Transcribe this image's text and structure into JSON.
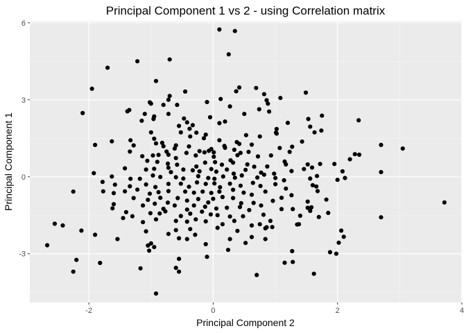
{
  "chart_data": {
    "type": "scatter",
    "title": "Principal Component 1 vs 2 - using Correlation matrix",
    "xlabel": "Principal Component 2",
    "ylabel": "Principal Component 1",
    "xlim": [
      -2.95,
      4.0
    ],
    "ylim": [
      -4.9,
      6.05
    ],
    "xticks": [
      -2,
      0,
      2,
      4
    ],
    "xtick_labels": [
      "-2",
      "0",
      "2",
      "4"
    ],
    "yticks": [
      -3,
      0,
      3,
      6
    ],
    "ytick_labels": [
      "-3",
      "0",
      "3",
      "6"
    ],
    "grid": true,
    "legend": "none",
    "colors": {
      "panel": "#ebebeb",
      "grid_major": "#ffffff",
      "grid_minor": "#f5f5f5",
      "point": "#000000"
    },
    "points": [
      [
        0.1,
        5.74
      ],
      [
        0.35,
        5.68
      ],
      [
        0.25,
        4.77
      ],
      [
        -1.7,
        4.25
      ],
      [
        -0.7,
        4.57
      ],
      [
        -1.22,
        4.5
      ],
      [
        -1.95,
        3.43
      ],
      [
        -2.1,
        2.48
      ],
      [
        -0.92,
        3.73
      ],
      [
        0.42,
        3.48
      ],
      [
        0.69,
        3.46
      ],
      [
        0.37,
        3.33
      ],
      [
        -0.45,
        3.32
      ],
      [
        0.12,
        3.03
      ],
      [
        0.82,
        3.22
      ],
      [
        0.86,
        2.98
      ],
      [
        0.88,
        2.85
      ],
      [
        1.08,
        3.07
      ],
      [
        1.49,
        3.28
      ],
      [
        -0.7,
        3.15
      ],
      [
        -0.72,
        3.0
      ],
      [
        -1.02,
        2.9
      ],
      [
        -1.0,
        2.85
      ],
      [
        -0.8,
        2.8
      ],
      [
        -0.58,
        2.8
      ],
      [
        -1.35,
        2.6
      ],
      [
        -1.38,
        2.55
      ],
      [
        -0.1,
        2.91
      ],
      [
        0.27,
        2.74
      ],
      [
        0.9,
        2.54
      ],
      [
        -1.1,
        2.45
      ],
      [
        -0.72,
        2.45
      ],
      [
        -0.95,
        2.35
      ],
      [
        -0.96,
        2.25
      ],
      [
        -0.47,
        2.27
      ],
      [
        0.5,
        2.45
      ],
      [
        0.74,
        2.63
      ],
      [
        1.75,
        2.38
      ],
      [
        1.53,
        2.25
      ],
      [
        2.34,
        2.2
      ],
      [
        -1.15,
        2.18
      ],
      [
        -0.42,
        2.12
      ],
      [
        -0.33,
        2.01
      ],
      [
        -0.55,
        1.98
      ],
      [
        -0.38,
        1.87
      ],
      [
        -0.05,
        2.32
      ],
      [
        0.1,
        2.09
      ],
      [
        0.19,
        2.15
      ],
      [
        1.2,
        2.1
      ],
      [
        1.56,
        1.95
      ],
      [
        -1.0,
        1.73
      ],
      [
        -0.52,
        1.73
      ],
      [
        -0.37,
        1.57
      ],
      [
        -0.27,
        1.72
      ],
      [
        -0.12,
        1.64
      ],
      [
        0.53,
        1.62
      ],
      [
        0.75,
        1.57
      ],
      [
        1.02,
        1.68
      ],
      [
        1.01,
        1.72
      ],
      [
        1.63,
        1.73
      ],
      [
        1.74,
        1.8
      ],
      [
        1.02,
        1.86
      ],
      [
        -1.9,
        1.24
      ],
      [
        -1.63,
        1.38
      ],
      [
        -1.33,
        1.42
      ],
      [
        -1.28,
        1.22
      ],
      [
        -0.95,
        1.48
      ],
      [
        -0.92,
        1.3
      ],
      [
        -0.82,
        1.32
      ],
      [
        -0.8,
        1.19
      ],
      [
        -0.6,
        1.22
      ],
      [
        -0.15,
        1.5
      ],
      [
        0.1,
        1.42
      ],
      [
        0.18,
        1.2
      ],
      [
        0.38,
        1.35
      ],
      [
        0.42,
        1.28
      ],
      [
        -0.75,
        0.98
      ],
      [
        -0.62,
        1.1
      ],
      [
        -0.39,
        1.18
      ],
      [
        -0.22,
        1.0
      ],
      [
        -0.03,
        1.08
      ],
      [
        0.01,
        0.95
      ],
      [
        0.19,
        1.13
      ],
      [
        0.34,
        1.05
      ],
      [
        0.44,
        0.93
      ],
      [
        0.62,
        1.25
      ],
      [
        1.07,
        1.12
      ],
      [
        1.27,
        1.17
      ],
      [
        1.43,
        1.37
      ],
      [
        2.7,
        1.24
      ],
      [
        3.05,
        1.1
      ],
      [
        -1.34,
        0.98
      ],
      [
        -1.14,
        0.8
      ],
      [
        -0.97,
        0.83
      ],
      [
        -0.88,
        0.85
      ],
      [
        -0.72,
        0.86
      ],
      [
        -0.6,
        0.73
      ],
      [
        -0.43,
        0.93
      ],
      [
        -0.28,
        0.83
      ],
      [
        -0.14,
        0.95
      ],
      [
        -0.07,
        1.01
      ],
      [
        0.01,
        0.78
      ],
      [
        0.28,
        0.64
      ],
      [
        0.39,
        0.84
      ],
      [
        0.57,
        0.97
      ],
      [
        0.72,
        0.79
      ],
      [
        0.93,
        0.83
      ],
      [
        1.23,
        0.97
      ],
      [
        2.28,
        0.88
      ],
      [
        2.35,
        0.86
      ],
      [
        2.2,
        0.68
      ],
      [
        -1.06,
        0.62
      ],
      [
        -0.9,
        0.58
      ],
      [
        -0.73,
        0.51
      ],
      [
        -0.58,
        0.47
      ],
      [
        -0.27,
        0.4
      ],
      [
        -0.13,
        0.55
      ],
      [
        0.03,
        0.57
      ],
      [
        0.14,
        0.47
      ],
      [
        0.32,
        0.55
      ],
      [
        0.55,
        0.48
      ],
      [
        0.66,
        0.39
      ],
      [
        0.87,
        0.4
      ],
      [
        1.15,
        0.59
      ],
      [
        1.17,
        0.48
      ],
      [
        1.52,
        0.48
      ],
      [
        1.59,
        0.36
      ],
      [
        1.72,
        0.5
      ],
      [
        1.95,
        0.5
      ],
      [
        -1.92,
        0.14
      ],
      [
        -1.42,
        0.33
      ],
      [
        -1.08,
        0.28
      ],
      [
        -0.95,
        0.31
      ],
      [
        -0.72,
        0.35
      ],
      [
        -0.68,
        0.18
      ],
      [
        -0.48,
        0.28
      ],
      [
        -0.33,
        0.25
      ],
      [
        -0.22,
        0.21
      ],
      [
        -0.03,
        0.3
      ],
      [
        0.05,
        0.2
      ],
      [
        0.22,
        0.28
      ],
      [
        0.33,
        0.12
      ],
      [
        0.52,
        0.27
      ],
      [
        0.77,
        0.16
      ],
      [
        0.98,
        0.12
      ],
      [
        1.26,
        0.22
      ],
      [
        1.46,
        0.3
      ],
      [
        2.08,
        0.21
      ],
      [
        2.7,
        0.18
      ],
      [
        -1.63,
        0.01
      ],
      [
        -1.33,
        -0.08
      ],
      [
        -1.18,
        -0.08
      ],
      [
        -0.97,
        0.05
      ],
      [
        -0.85,
        -0.01
      ],
      [
        -0.6,
        -0.02
      ],
      [
        -0.48,
        -0.07
      ],
      [
        -0.24,
        0.02
      ],
      [
        -0.08,
        -0.05
      ],
      [
        0.02,
        -0.08
      ],
      [
        0.16,
        0.01
      ],
      [
        0.35,
        -0.04
      ],
      [
        0.46,
        0.05
      ],
      [
        0.71,
        -0.03
      ],
      [
        0.82,
        0.08
      ],
      [
        1.0,
        -0.05
      ],
      [
        1.14,
        -0.14
      ],
      [
        1.56,
        -0.07
      ],
      [
        1.67,
        0.03
      ],
      [
        2.12,
        -0.05
      ],
      [
        -2.25,
        -0.58
      ],
      [
        -1.78,
        -0.2
      ],
      [
        -1.58,
        -0.31
      ],
      [
        -1.34,
        -0.37
      ],
      [
        -1.08,
        -0.3
      ],
      [
        -0.93,
        -0.4
      ],
      [
        -0.72,
        -0.28
      ],
      [
        -0.52,
        -0.27
      ],
      [
        -0.39,
        -0.39
      ],
      [
        -0.26,
        -0.22
      ],
      [
        -0.12,
        -0.28
      ],
      [
        0.02,
        -0.26
      ],
      [
        0.11,
        -0.41
      ],
      [
        0.27,
        -0.27
      ],
      [
        0.44,
        -0.35
      ],
      [
        0.64,
        -0.24
      ],
      [
        0.76,
        -0.36
      ],
      [
        1.0,
        -0.29
      ],
      [
        1.17,
        -0.46
      ],
      [
        1.6,
        -0.33
      ],
      [
        1.66,
        -0.38
      ],
      [
        2.0,
        -0.12
      ],
      [
        -1.77,
        -0.57
      ],
      [
        -1.6,
        -0.64
      ],
      [
        -1.42,
        -0.57
      ],
      [
        -1.22,
        -0.5
      ],
      [
        -1.02,
        -0.66
      ],
      [
        -0.88,
        -0.6
      ],
      [
        -0.72,
        -0.56
      ],
      [
        -0.45,
        -0.58
      ],
      [
        -0.31,
        -0.62
      ],
      [
        -0.17,
        -0.58
      ],
      [
        -0.03,
        -0.63
      ],
      [
        0.1,
        -0.58
      ],
      [
        0.32,
        -0.51
      ],
      [
        0.49,
        -0.62
      ],
      [
        0.62,
        -0.7
      ],
      [
        0.84,
        -0.58
      ],
      [
        1.1,
        -0.82
      ],
      [
        1.68,
        -0.56
      ],
      [
        -1.6,
        -1.07
      ],
      [
        -1.28,
        -0.83
      ],
      [
        -1.05,
        -0.9
      ],
      [
        -0.85,
        -0.82
      ],
      [
        -0.73,
        -1.01
      ],
      [
        -0.57,
        -0.83
      ],
      [
        -0.42,
        -0.93
      ],
      [
        -0.24,
        -0.87
      ],
      [
        -0.08,
        -1.0
      ],
      [
        0.0,
        -0.86
      ],
      [
        0.15,
        -0.79
      ],
      [
        0.32,
        -0.83
      ],
      [
        0.45,
        -1.03
      ],
      [
        0.65,
        -1.02
      ],
      [
        0.96,
        -0.94
      ],
      [
        1.26,
        -0.72
      ],
      [
        1.52,
        -0.97
      ],
      [
        1.82,
        -0.89
      ],
      [
        -1.62,
        -1.23
      ],
      [
        -1.4,
        -1.38
      ],
      [
        -1.13,
        -1.12
      ],
      [
        -0.94,
        -1.05
      ],
      [
        -0.8,
        -1.25
      ],
      [
        -0.62,
        -1.12
      ],
      [
        -0.42,
        -1.28
      ],
      [
        -0.31,
        -1.12
      ],
      [
        -0.13,
        -1.17
      ],
      [
        0.05,
        -1.24
      ],
      [
        0.22,
        -1.21
      ],
      [
        0.43,
        -1.18
      ],
      [
        0.58,
        -1.3
      ],
      [
        0.77,
        -1.12
      ],
      [
        1.1,
        -1.26
      ],
      [
        1.28,
        -1.26
      ],
      [
        1.58,
        -1.19
      ],
      [
        1.85,
        -1.41
      ],
      [
        -1.3,
        -1.54
      ],
      [
        -1.01,
        -1.42
      ],
      [
        -0.86,
        -1.43
      ],
      [
        -0.77,
        -1.35
      ],
      [
        -0.52,
        -1.53
      ],
      [
        -0.37,
        -1.44
      ],
      [
        -0.18,
        -1.36
      ],
      [
        -0.04,
        -1.47
      ],
      [
        0.07,
        -1.5
      ],
      [
        0.27,
        -1.55
      ],
      [
        0.48,
        -1.54
      ],
      [
        0.81,
        -1.48
      ],
      [
        0.92,
        -1.72
      ],
      [
        1.4,
        -1.52
      ],
      [
        1.52,
        -1.21
      ],
      [
        1.56,
        -1.33
      ],
      [
        -1.45,
        -1.61
      ],
      [
        -1.13,
        -1.77
      ],
      [
        -0.92,
        -1.66
      ],
      [
        -0.6,
        -1.72
      ],
      [
        -0.42,
        -1.75
      ],
      [
        -0.28,
        -1.66
      ],
      [
        -0.12,
        -1.74
      ],
      [
        0.15,
        -1.85
      ],
      [
        0.34,
        -1.72
      ],
      [
        0.62,
        -1.9
      ],
      [
        0.75,
        -1.85
      ],
      [
        0.95,
        -1.96
      ],
      [
        1.35,
        -1.86
      ],
      [
        1.38,
        -1.85
      ],
      [
        1.7,
        -1.57
      ],
      [
        2.7,
        -1.58
      ],
      [
        -2.55,
        -1.83
      ],
      [
        -2.42,
        -1.9
      ],
      [
        -2.12,
        -2.1
      ],
      [
        -1.9,
        -2.26
      ],
      [
        -1.54,
        -2.43
      ],
      [
        -1.08,
        -2.13
      ],
      [
        -0.72,
        -2.23
      ],
      [
        -0.6,
        -2.08
      ],
      [
        -0.37,
        -2.04
      ],
      [
        -0.29,
        -2.26
      ],
      [
        0.07,
        -1.99
      ],
      [
        0.39,
        -2.11
      ],
      [
        0.62,
        -2.35
      ],
      [
        0.84,
        -2.01
      ],
      [
        0.86,
        -1.97
      ],
      [
        2.06,
        -2.1
      ],
      [
        2.1,
        -2.34
      ],
      [
        2.02,
        -2.57
      ],
      [
        -2.67,
        -2.67
      ],
      [
        -1.05,
        -2.68
      ],
      [
        -1.0,
        -2.6
      ],
      [
        -0.55,
        -2.4
      ],
      [
        -0.42,
        -2.43
      ],
      [
        -0.12,
        -2.63
      ],
      [
        0.27,
        -2.43
      ],
      [
        0.52,
        -2.58
      ],
      [
        0.84,
        -2.43
      ],
      [
        -1.82,
        -3.36
      ],
      [
        -2.2,
        -3.24
      ],
      [
        -2.25,
        -3.7
      ],
      [
        -1.03,
        -2.88
      ],
      [
        -0.95,
        -2.74
      ],
      [
        -0.55,
        -3.2
      ],
      [
        -0.6,
        -3.55
      ],
      [
        -0.55,
        -3.7
      ],
      [
        -0.1,
        -3.12
      ],
      [
        0.24,
        -2.85
      ],
      [
        0.7,
        -3.83
      ],
      [
        1.15,
        -3.35
      ],
      [
        1.27,
        -2.9
      ],
      [
        1.28,
        -3.32
      ],
      [
        1.62,
        -3.78
      ],
      [
        1.88,
        -2.94
      ],
      [
        1.98,
        -3.0
      ],
      [
        -1.17,
        -3.57
      ],
      [
        -0.92,
        -4.55
      ],
      [
        3.72,
        -1.0
      ]
    ]
  }
}
